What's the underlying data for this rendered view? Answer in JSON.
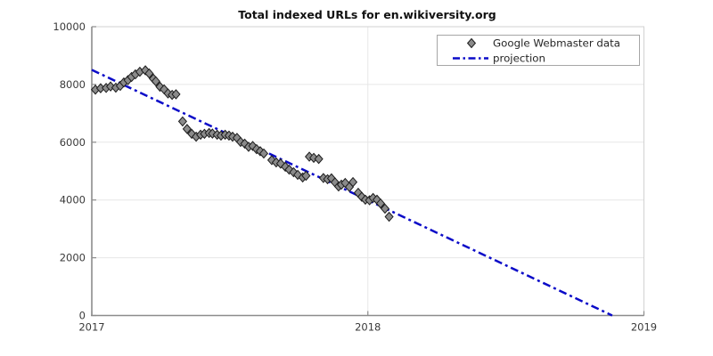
{
  "title": "Total indexed URLs for en.wikiversity.org",
  "legend": {
    "items": [
      {
        "label": "Google Webmaster data",
        "symbol": "diamond-marker"
      },
      {
        "label": "projection",
        "symbol": "dashdot-line"
      }
    ]
  },
  "colors": {
    "projection_line": "#0b0bc8",
    "marker_fill": "#8a8a8a",
    "marker_edge": "#1c1c1c",
    "grid": "#e7e7e7",
    "frame": "#d2d2d2",
    "spine": "#8c8c8c",
    "tick": "#8c8c8c",
    "text": "#262626",
    "legend_border": "#a6a6a6",
    "background": "#ffffff"
  },
  "chart_data": {
    "type": "scatter",
    "title": "Total indexed URLs for en.wikiversity.org",
    "xlabel": "",
    "ylabel": "",
    "xlim": [
      2017,
      2019
    ],
    "ylim": [
      0,
      10000
    ],
    "x_ticks": [
      2017,
      2018,
      2019
    ],
    "y_ticks": [
      0,
      2000,
      4000,
      6000,
      8000,
      10000
    ],
    "grid": true,
    "legend_position": "upper right",
    "series": [
      {
        "name": "Google Webmaster data",
        "type": "scatter",
        "marker": "diamond",
        "points": [
          [
            2017.013,
            7820
          ],
          [
            2017.032,
            7870
          ],
          [
            2017.052,
            7880
          ],
          [
            2017.068,
            7930
          ],
          [
            2017.087,
            7890
          ],
          [
            2017.103,
            7950
          ],
          [
            2017.116,
            8070
          ],
          [
            2017.131,
            8150
          ],
          [
            2017.144,
            8260
          ],
          [
            2017.158,
            8350
          ],
          [
            2017.174,
            8440
          ],
          [
            2017.194,
            8490
          ],
          [
            2017.208,
            8380
          ],
          [
            2017.223,
            8200
          ],
          [
            2017.232,
            8110
          ],
          [
            2017.247,
            7920
          ],
          [
            2017.262,
            7830
          ],
          [
            2017.276,
            7690
          ],
          [
            2017.291,
            7640
          ],
          [
            2017.305,
            7660
          ],
          [
            2017.329,
            6720
          ],
          [
            2017.345,
            6460
          ],
          [
            2017.362,
            6290
          ],
          [
            2017.378,
            6190
          ],
          [
            2017.394,
            6260
          ],
          [
            2017.408,
            6290
          ],
          [
            2017.425,
            6320
          ],
          [
            2017.437,
            6300
          ],
          [
            2017.454,
            6260
          ],
          [
            2017.468,
            6230
          ],
          [
            2017.483,
            6260
          ],
          [
            2017.497,
            6230
          ],
          [
            2017.51,
            6190
          ],
          [
            2017.526,
            6150
          ],
          [
            2017.539,
            6010
          ],
          [
            2017.554,
            5950
          ],
          [
            2017.568,
            5840
          ],
          [
            2017.583,
            5870
          ],
          [
            2017.597,
            5760
          ],
          [
            2017.61,
            5690
          ],
          [
            2017.623,
            5610
          ],
          [
            2017.652,
            5380
          ],
          [
            2017.668,
            5300
          ],
          [
            2017.684,
            5260
          ],
          [
            2017.701,
            5150
          ],
          [
            2017.715,
            5050
          ],
          [
            2017.731,
            4960
          ],
          [
            2017.746,
            4870
          ],
          [
            2017.764,
            4780
          ],
          [
            2017.776,
            4840
          ],
          [
            2017.788,
            5500
          ],
          [
            2017.804,
            5460
          ],
          [
            2017.822,
            5420
          ],
          [
            2017.839,
            4760
          ],
          [
            2017.854,
            4720
          ],
          [
            2017.868,
            4750
          ],
          [
            2017.881,
            4610
          ],
          [
            2017.894,
            4470
          ],
          [
            2017.904,
            4530
          ],
          [
            2017.918,
            4590
          ],
          [
            2017.933,
            4450
          ],
          [
            2017.946,
            4620
          ],
          [
            2017.965,
            4250
          ],
          [
            2017.978,
            4110
          ],
          [
            2017.991,
            4010
          ],
          [
            2018.006,
            3990
          ],
          [
            2018.019,
            4070
          ],
          [
            2018.033,
            4010
          ],
          [
            2018.046,
            3880
          ],
          [
            2018.062,
            3700
          ],
          [
            2018.077,
            3420
          ]
        ]
      },
      {
        "name": "projection",
        "type": "line",
        "style": "dashdot",
        "points": [
          [
            2017.0,
            8505
          ],
          [
            2018.885,
            0
          ]
        ]
      }
    ]
  }
}
